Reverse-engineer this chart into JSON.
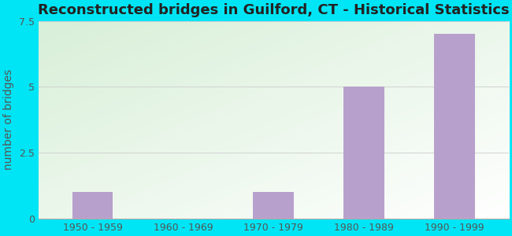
{
  "title": "Reconstructed bridges in Guilford, CT - Historical Statistics",
  "categories": [
    "1950 - 1959",
    "1960 - 1969",
    "1970 - 1979",
    "1980 - 1989",
    "1990 - 1999"
  ],
  "values": [
    1,
    0,
    1,
    5,
    7
  ],
  "bar_color": "#b8a0cc",
  "ylabel": "number of bridges",
  "ylim": [
    0,
    7.5
  ],
  "yticks": [
    0,
    2.5,
    5,
    7.5
  ],
  "background_outer": "#00e5f5",
  "bg_top_left": "#d8efd8",
  "bg_bottom_right": "#ffffff",
  "grid_color": "#cccccc",
  "title_fontsize": 13,
  "ylabel_fontsize": 10,
  "tick_fontsize": 9,
  "bar_width": 0.45
}
